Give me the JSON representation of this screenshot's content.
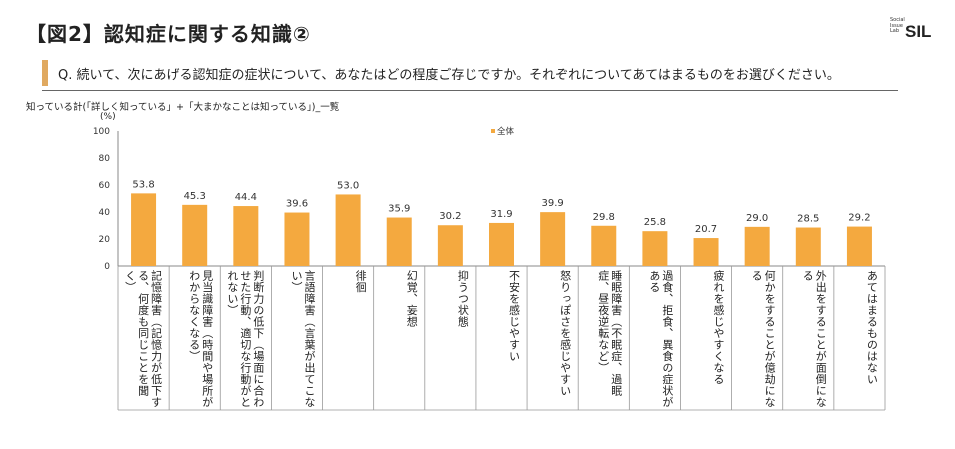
{
  "header": {
    "title": "【図2】認知症に関する知識②",
    "logo_small": [
      "Social",
      "Issue",
      "Lab"
    ],
    "logo_big": "SIL",
    "question": "Q. 続いて、次にあげる認知症の症状について、あなたはどの程度ご存じですか。それぞれについてあてはまるものをお選びください。",
    "subtitle": "知っている計(「詳しく知っている」+「大まかなことは知っている」)_一覧",
    "unit": "(%)"
  },
  "colors": {
    "bar": "#f4a93f",
    "accent": "#e0a960",
    "axis": "#888888"
  },
  "chart_data": {
    "type": "bar",
    "title": "",
    "xlabel": "",
    "ylabel": "(%)",
    "ylim": [
      0,
      100
    ],
    "yticks": [
      0,
      20,
      40,
      60,
      80,
      100
    ],
    "legend": {
      "position": "top-center"
    },
    "categories": [
      "記憶障害（記憶力が低下する、何度も同じことを聞く）",
      "見当識障害（時間や場所がわからなくなる）",
      "判断力の低下（場面に合わせた行動、適切な行動がとれない）",
      "言語障害（言葉が出てこない）",
      "徘徊",
      "幻覚、妄想",
      "抑うつ状態",
      "不安を感じやすい",
      "怒りっぽさを感じやすい",
      "睡眠障害（不眠症、過眠症、昼夜逆転など）",
      "過食、拒食、異食の症状がある",
      "疲れを感じやすくなる",
      "何かをすることが億劫になる",
      "外出をすることが面倒になる",
      "あてはまるものはない"
    ],
    "series": [
      {
        "name": "全体",
        "values": [
          53.8,
          45.3,
          44.4,
          39.6,
          53.0,
          35.9,
          30.2,
          31.9,
          39.9,
          29.8,
          25.8,
          20.7,
          29.0,
          28.5,
          29.2
        ]
      }
    ]
  }
}
